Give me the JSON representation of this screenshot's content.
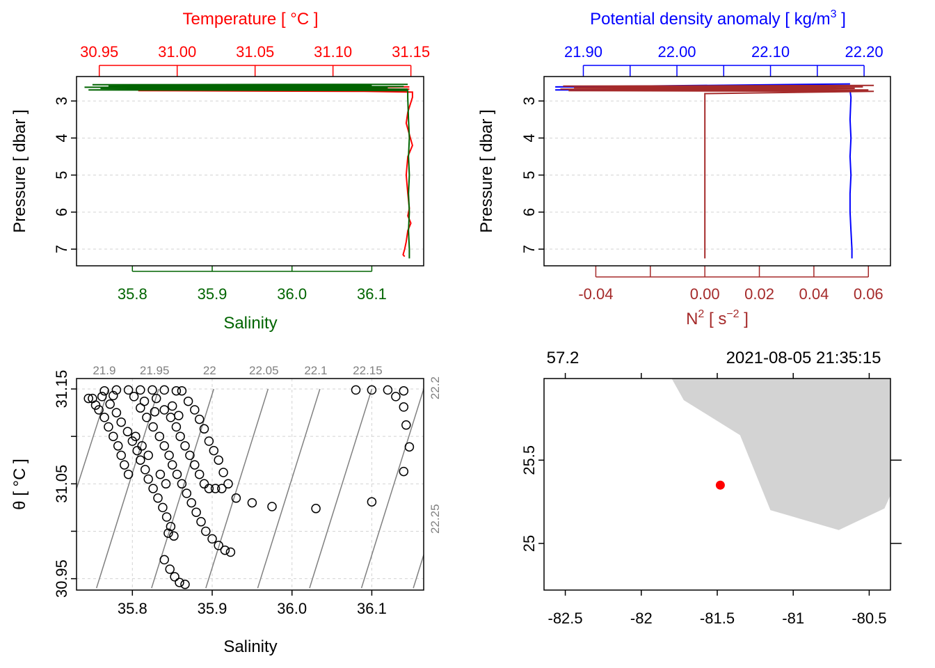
{
  "chart_data": [
    {
      "type": "line",
      "panel": "temperature-salinity-profile",
      "xlabel": "Salinity",
      "x_ticks": [
        "35.8",
        "35.9",
        "36.0",
        "36.1"
      ],
      "xlim": [
        35.73,
        36.165
      ],
      "top_label": "Temperature [ °C ]",
      "top_ticks": [
        "30.95",
        "31.00",
        "31.05",
        "31.10",
        "31.15"
      ],
      "top_lim": [
        30.9354,
        31.1582
      ],
      "ylabel": "Pressure [ dbar ]",
      "y_ticks": [
        "3",
        "4",
        "5",
        "6",
        "7"
      ],
      "ylim": [
        7.45,
        2.34
      ],
      "grid": true,
      "series": [
        {
          "variable": "temperature",
          "color": "#ff0000",
          "points": [
            [
              31.149,
              2.62
            ],
            [
              31.02,
              2.63
            ],
            [
              30.98,
              2.64
            ],
            [
              31.1,
              2.66
            ],
            [
              31.149,
              2.68
            ],
            [
              31.05,
              2.7
            ],
            [
              30.975,
              2.72
            ],
            [
              31.12,
              2.74
            ],
            [
              31.151,
              2.76
            ],
            [
              31.151,
              2.9
            ],
            [
              31.148,
              3.3
            ],
            [
              31.147,
              3.6
            ],
            [
              31.149,
              3.9
            ],
            [
              31.151,
              4.2
            ],
            [
              31.148,
              4.5
            ],
            [
              31.147,
              5.0
            ],
            [
              31.148,
              5.5
            ],
            [
              31.149,
              5.9
            ],
            [
              31.148,
              6.1
            ],
            [
              31.15,
              6.3
            ],
            [
              31.148,
              6.5
            ],
            [
              31.147,
              6.8
            ],
            [
              31.146,
              7.0
            ],
            [
              31.145,
              7.15
            ],
            [
              31.146,
              7.2
            ]
          ]
        },
        {
          "variable": "salinity",
          "color": "#006400",
          "points": [
            [
              36.145,
              2.55
            ],
            [
              35.75,
              2.56
            ],
            [
              36.1,
              2.58
            ],
            [
              35.77,
              2.6
            ],
            [
              36.14,
              2.61
            ],
            [
              35.74,
              2.63
            ],
            [
              36.12,
              2.64
            ],
            [
              35.76,
              2.66
            ],
            [
              36.145,
              2.68
            ],
            [
              35.745,
              2.7
            ],
            [
              36.145,
              2.72
            ],
            [
              36.145,
              2.9
            ],
            [
              36.146,
              3.5
            ],
            [
              36.147,
              4.0
            ],
            [
              36.146,
              4.5
            ],
            [
              36.147,
              5.0
            ],
            [
              36.146,
              5.5
            ],
            [
              36.147,
              6.0
            ],
            [
              36.146,
              6.5
            ],
            [
              36.147,
              7.0
            ],
            [
              36.147,
              7.25
            ]
          ]
        }
      ]
    },
    {
      "type": "line",
      "panel": "density-n2-profile",
      "top_label": "Potential density anomaly",
      "top_unit": "[ kg/m",
      "top_unit_superscript": "3",
      "top_unit_close": " ]",
      "top_ticks": [
        "21.90",
        "22.00",
        "22.10",
        "22.20"
      ],
      "top_minor_ticks": [
        21.95,
        22.05,
        22.15
      ],
      "top_lim": [
        21.858,
        22.2282
      ],
      "bottom_label": "N",
      "bottom_label_sup": "2",
      "bottom_unit": " [ s",
      "bottom_unit_sup": "−2",
      "bottom_unit_close": " ]",
      "x_ticks": [
        "-0.04",
        "0.00",
        "0.02",
        "0.04",
        "0.06"
      ],
      "x_minor_ticks": [
        -0.02
      ],
      "xlim": [
        -0.059,
        0.0681
      ],
      "ylabel": "Pressure [ dbar ]",
      "y_ticks": [
        "3",
        "4",
        "5",
        "6",
        "7"
      ],
      "ylim": [
        7.45,
        2.34
      ],
      "grid": true,
      "series": [
        {
          "variable": "potential density anomaly",
          "color": "#0000ff",
          "points": [
            [
              22.185,
              2.54
            ],
            [
              21.87,
              2.62
            ],
            [
              22.17,
              2.64
            ],
            [
              22.11,
              2.66
            ],
            [
              21.87,
              2.7
            ],
            [
              22.185,
              2.72
            ],
            [
              22.186,
              2.9
            ],
            [
              22.185,
              3.5
            ],
            [
              22.186,
              4.0
            ],
            [
              22.185,
              4.5
            ],
            [
              22.186,
              5.0
            ],
            [
              22.185,
              5.5
            ],
            [
              22.185,
              6.0
            ],
            [
              22.186,
              6.5
            ],
            [
              22.187,
              7.0
            ],
            [
              22.187,
              7.25
            ]
          ]
        },
        {
          "variable": "N2",
          "color": "#a52a2a",
          "points": [
            [
              0.062,
              2.58
            ],
            [
              -0.052,
              2.6
            ],
            [
              0.058,
              2.62
            ],
            [
              -0.048,
              2.64
            ],
            [
              0.055,
              2.66
            ],
            [
              -0.053,
              2.68
            ],
            [
              0.06,
              2.7
            ],
            [
              -0.05,
              2.72
            ],
            [
              0.062,
              2.74
            ],
            [
              0.0,
              2.8
            ],
            [
              0.0,
              2.88
            ],
            [
              0.0,
              3.0
            ],
            [
              0.0,
              4.0
            ],
            [
              0.0,
              5.0
            ],
            [
              0.0,
              6.0
            ],
            [
              0.0,
              7.0
            ],
            [
              0.0,
              7.25
            ]
          ]
        }
      ]
    },
    {
      "type": "scatter",
      "panel": "ts-diagram",
      "xlabel": "Salinity",
      "x_ticks": [
        "35.8",
        "35.9",
        "36.0",
        "36.1"
      ],
      "xlim": [
        35.73,
        36.165
      ],
      "ylabel": "θ [ °C ]",
      "y_ticks": [
        "30.95",
        "31.05",
        "31.15"
      ],
      "y_minor_ticks": [
        31.0,
        31.1
      ],
      "ylim": [
        30.938,
        31.161
      ],
      "grid": true,
      "isopycnals": {
        "color": "#808080",
        "top_labels": [
          "21.9",
          "21.95",
          "22",
          "22.05",
          "22.1",
          "22.15"
        ],
        "right_labels": [
          "22.2",
          "22.25"
        ]
      },
      "points": [
        [
          35.754,
          31.133
        ],
        [
          35.762,
          31.142
        ],
        [
          35.758,
          31.128
        ],
        [
          35.765,
          31.12
        ],
        [
          35.77,
          31.11
        ],
        [
          35.776,
          31.1
        ],
        [
          35.782,
          31.09
        ],
        [
          35.786,
          31.08
        ],
        [
          35.79,
          31.07
        ],
        [
          35.795,
          31.06
        ],
        [
          35.772,
          31.134
        ],
        [
          35.78,
          31.125
        ],
        [
          35.786,
          31.115
        ],
        [
          35.794,
          31.105
        ],
        [
          35.8,
          31.095
        ],
        [
          35.806,
          31.085
        ],
        [
          35.81,
          31.075
        ],
        [
          35.816,
          31.065
        ],
        [
          35.82,
          31.055
        ],
        [
          35.826,
          31.045
        ],
        [
          35.832,
          31.035
        ],
        [
          35.838,
          31.025
        ],
        [
          35.843,
          31.015
        ],
        [
          35.848,
          31.005
        ],
        [
          35.852,
          30.995
        ],
        [
          35.845,
          30.998
        ],
        [
          35.84,
          30.97
        ],
        [
          35.847,
          30.96
        ],
        [
          35.853,
          30.952
        ],
        [
          35.859,
          30.946
        ],
        [
          35.866,
          30.944
        ],
        [
          35.765,
          31.148
        ],
        [
          35.78,
          31.149
        ],
        [
          35.795,
          31.149
        ],
        [
          35.81,
          31.149
        ],
        [
          35.825,
          31.149
        ],
        [
          35.84,
          31.149
        ],
        [
          35.855,
          31.148
        ],
        [
          35.862,
          31.148
        ],
        [
          35.802,
          31.142
        ],
        [
          35.81,
          31.13
        ],
        [
          35.818,
          31.12
        ],
        [
          35.826,
          31.11
        ],
        [
          35.834,
          31.1
        ],
        [
          35.84,
          31.09
        ],
        [
          35.846,
          31.08
        ],
        [
          35.85,
          31.07
        ],
        [
          35.856,
          31.06
        ],
        [
          35.862,
          31.05
        ],
        [
          35.868,
          31.04
        ],
        [
          35.874,
          31.03
        ],
        [
          35.88,
          31.02
        ],
        [
          35.886,
          31.01
        ],
        [
          35.892,
          31.0
        ],
        [
          35.9,
          30.992
        ],
        [
          35.908,
          30.985
        ],
        [
          35.916,
          30.98
        ],
        [
          35.923,
          30.978
        ],
        [
          35.83,
          31.14
        ],
        [
          35.84,
          31.128
        ],
        [
          35.848,
          31.12
        ],
        [
          35.855,
          31.11
        ],
        [
          35.86,
          31.1
        ],
        [
          35.866,
          31.09
        ],
        [
          35.872,
          31.08
        ],
        [
          35.878,
          31.07
        ],
        [
          35.884,
          31.06
        ],
        [
          35.89,
          31.05
        ],
        [
          35.896,
          31.045
        ],
        [
          35.904,
          31.045
        ],
        [
          35.912,
          31.045
        ],
        [
          35.87,
          31.137
        ],
        [
          35.878,
          31.128
        ],
        [
          35.884,
          31.118
        ],
        [
          35.89,
          31.108
        ],
        [
          35.896,
          31.095
        ],
        [
          35.902,
          31.085
        ],
        [
          35.908,
          31.075
        ],
        [
          35.914,
          31.062
        ],
        [
          35.92,
          31.05
        ],
        [
          35.93,
          31.035
        ],
        [
          35.95,
          31.03
        ],
        [
          35.975,
          31.026
        ],
        [
          36.03,
          31.024
        ],
        [
          36.1,
          31.031
        ],
        [
          36.08,
          31.149
        ],
        [
          36.1,
          31.149
        ],
        [
          36.12,
          31.149
        ],
        [
          36.14,
          31.148
        ],
        [
          36.13,
          31.142
        ],
        [
          36.14,
          31.131
        ],
        [
          36.143,
          31.112
        ],
        [
          36.147,
          31.089
        ],
        [
          36.14,
          31.063
        ],
        [
          35.75,
          31.14
        ],
        [
          35.776,
          31.143
        ],
        [
          35.815,
          31.137
        ],
        [
          35.828,
          31.126
        ],
        [
          35.85,
          31.132
        ],
        [
          35.858,
          31.122
        ],
        [
          35.745,
          31.14
        ],
        [
          35.835,
          31.06
        ],
        [
          35.842,
          31.05
        ],
        [
          35.82,
          31.08
        ],
        [
          35.812,
          31.09
        ],
        [
          35.804,
          31.1
        ]
      ]
    },
    {
      "type": "scatter",
      "panel": "station-map",
      "top_labels": [
        "57.2",
        "2021-08-05 21:35:15"
      ],
      "x_ticks": [
        "-82.5",
        "-82",
        "-81.5",
        "-81",
        "-80.5"
      ],
      "xlim": [
        -82.64,
        -80.36
      ],
      "y_ticks": [
        "25",
        "25.5"
      ],
      "ylim": [
        24.72,
        25.99
      ],
      "land_color": "#d3d3d3",
      "land_polygon": [
        [
          -81.8,
          25.99
        ],
        [
          -81.72,
          25.86
        ],
        [
          -81.35,
          25.65
        ],
        [
          -81.15,
          25.2
        ],
        [
          -80.7,
          25.08
        ],
        [
          -80.4,
          25.21
        ],
        [
          -80.36,
          25.29
        ],
        [
          -80.36,
          25.99
        ]
      ],
      "station": {
        "lon": -81.48,
        "lat": 25.35,
        "color": "#ff0000"
      }
    }
  ]
}
